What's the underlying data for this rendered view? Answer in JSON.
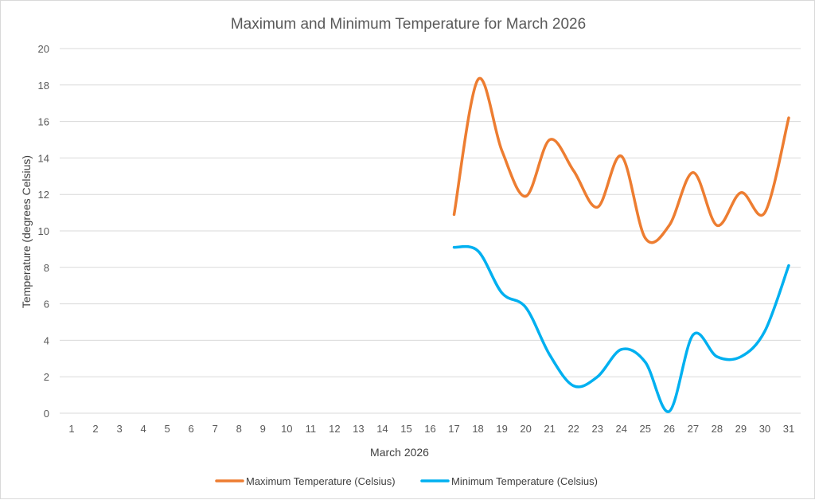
{
  "chart_data": {
    "type": "line",
    "title": "Maximum and Minimum Temperature for March 2026",
    "xlabel": "March 2026",
    "ylabel": "Temperature (degrees Celsius)",
    "categories": [
      "1",
      "2",
      "3",
      "4",
      "5",
      "6",
      "7",
      "8",
      "9",
      "10",
      "11",
      "12",
      "13",
      "14",
      "15",
      "16",
      "17",
      "18",
      "19",
      "20",
      "21",
      "22",
      "23",
      "24",
      "25",
      "26",
      "27",
      "28",
      "29",
      "30",
      "31"
    ],
    "ylim": [
      0,
      20
    ],
    "yticks": [
      "0",
      "2",
      "4",
      "6",
      "8",
      "10",
      "12",
      "14",
      "16",
      "18",
      "20"
    ],
    "grid": true,
    "smooth": true,
    "legend_position": "bottom",
    "series": [
      {
        "name": "Maximum Temperature (Celsius)",
        "color": "#ED7D31",
        "values": [
          null,
          null,
          null,
          null,
          null,
          null,
          null,
          null,
          null,
          null,
          null,
          null,
          null,
          null,
          null,
          null,
          10.9,
          18.3,
          14.4,
          11.9,
          15.0,
          13.3,
          11.3,
          14.1,
          9.6,
          10.3,
          13.2,
          10.3,
          12.1,
          11.0,
          16.2
        ]
      },
      {
        "name": "Minimum Temperature (Celsius)",
        "color": "#00B0F0",
        "values": [
          null,
          null,
          null,
          null,
          null,
          null,
          null,
          null,
          null,
          null,
          null,
          null,
          null,
          null,
          null,
          null,
          9.1,
          8.9,
          6.6,
          5.8,
          3.2,
          1.5,
          2.0,
          3.5,
          2.8,
          0.1,
          4.3,
          3.1,
          3.1,
          4.5,
          8.1
        ]
      }
    ]
  }
}
